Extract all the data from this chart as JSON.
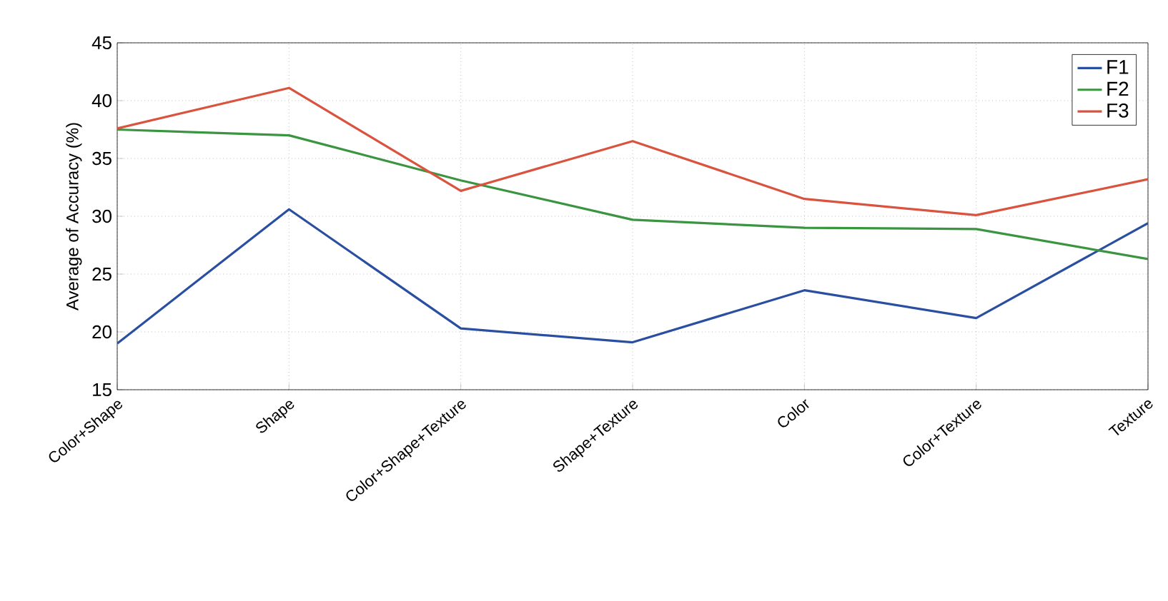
{
  "chart_data": {
    "type": "line",
    "ylabel": "Average of Accuracy (%)",
    "categories": [
      "Color+Shape",
      "Shape",
      "Color+Shape+Texture",
      "Shape+Texture",
      "Color",
      "Color+Texture",
      "Texture"
    ],
    "series": [
      {
        "name": "F1",
        "color": "#2a4fa0",
        "values": [
          19.0,
          30.6,
          20.3,
          19.1,
          23.6,
          21.2,
          29.4
        ]
      },
      {
        "name": "F2",
        "color": "#3a9440",
        "values": [
          37.5,
          37.0,
          33.1,
          29.7,
          29.0,
          28.9,
          26.3
        ]
      },
      {
        "name": "F3",
        "color": "#d9533e",
        "values": [
          37.6,
          41.1,
          32.2,
          36.5,
          31.5,
          30.1,
          33.2
        ]
      }
    ],
    "ylim": [
      15,
      45
    ],
    "yticks": [
      15,
      20,
      25,
      30,
      35,
      40,
      45
    ],
    "grid": true,
    "legend": "top right",
    "marker": "none",
    "line_style": "solid"
  }
}
